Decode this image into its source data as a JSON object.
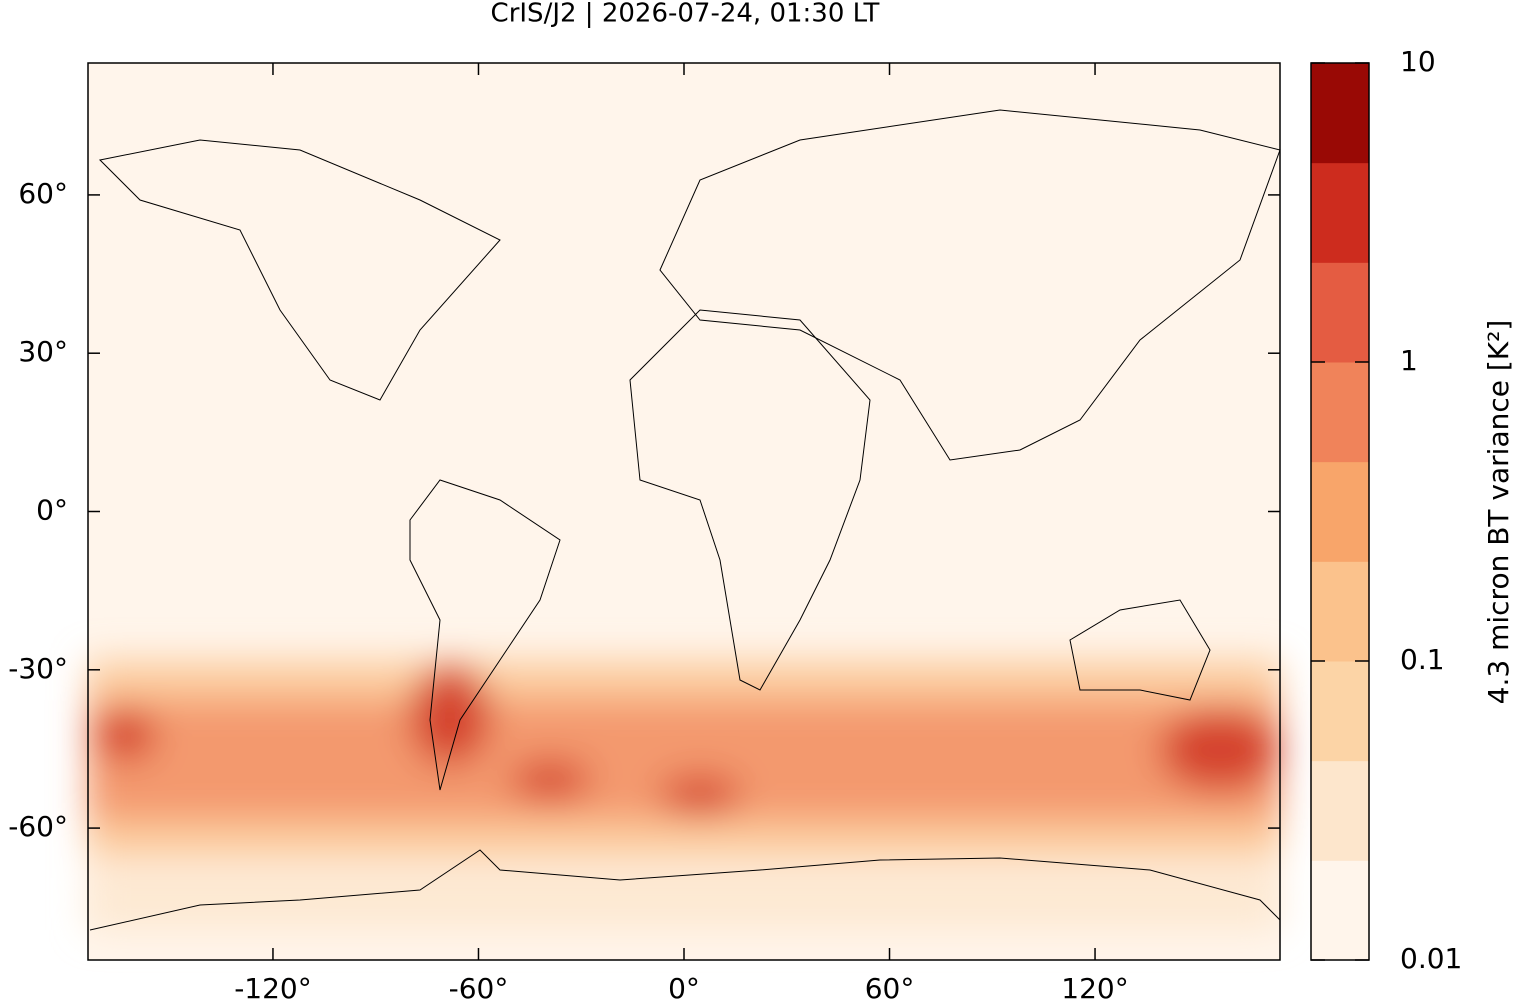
{
  "chart_data": {
    "type": "map",
    "title": "CrIS/J2 | 2026-07-24, 01:30 LT",
    "xlim": [
      -174,
      174
    ],
    "ylim": [
      -85,
      85
    ],
    "xticks": [
      {
        "value": -120,
        "label": "-120°"
      },
      {
        "value": -60,
        "label": "-60°"
      },
      {
        "value": 0,
        "label": "0°"
      },
      {
        "value": 60,
        "label": "60°"
      },
      {
        "value": 120,
        "label": "120°"
      }
    ],
    "yticks": [
      {
        "value": -60,
        "label": "-60°"
      },
      {
        "value": -30,
        "label": "-30°"
      },
      {
        "value": 0,
        "label": "0°"
      },
      {
        "value": 30,
        "label": "30°"
      },
      {
        "value": 60,
        "label": "60°"
      }
    ],
    "colorbar": {
      "label": "4.3 micron BT variance [K²]",
      "log": true,
      "lim": [
        0.01,
        10
      ],
      "ticks": [
        0.01,
        0.1,
        1,
        10
      ],
      "colors": [
        "#fff5eb",
        "#fde6cc",
        "#fcd4a6",
        "#fbc28c",
        "#f8a56a",
        "#f0835a",
        "#e45c42",
        "#cd2c1e",
        "#990905"
      ]
    }
  }
}
